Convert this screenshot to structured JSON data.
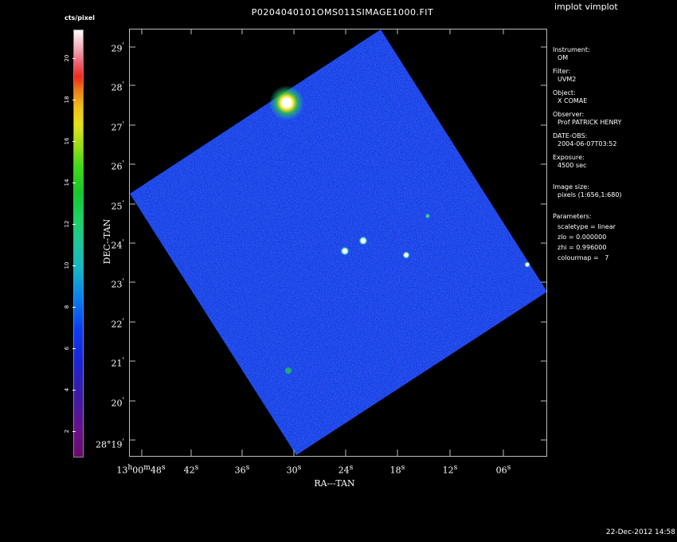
{
  "header": {
    "title": "P0204040101OMS011SIMAGE1000.FIT",
    "app_title": "implot vimplot"
  },
  "colorbar": {
    "unit": "cts/pixel",
    "ticks": [
      "2",
      "4",
      "6",
      "8",
      "10",
      "12",
      "14",
      "16",
      "18",
      "20"
    ],
    "range": [
      0.8,
      21.4
    ]
  },
  "axes": {
    "x_title": "RA---TAN",
    "y_title": "DEC--TAN",
    "x_first_label_main": "13",
    "x_first_label_h": "h",
    "x_first_label_mid": "00",
    "x_first_label_m": "m",
    "x_first_label_sec": "48",
    "x_first_label_s": "s",
    "x_labels": [
      "42",
      "36",
      "30",
      "24",
      "18",
      "12",
      "06"
    ],
    "x_label_unit": "s",
    "y_first_label_main": "28°19",
    "y_first_label_prime": "'",
    "y_labels": [
      "20",
      "21",
      "22",
      "23",
      "24",
      "25",
      "26",
      "27",
      "28",
      "29"
    ],
    "y_label_unit": "'"
  },
  "info": {
    "instrument_label": "Instrument:",
    "instrument_value": "OM",
    "filter_label": "Filter:",
    "filter_value": "UVM2",
    "object_label": "Object:",
    "object_value": "X COMAE",
    "observer_label": "Observer:",
    "observer_value": "Prof PATRICK HENRY",
    "date_label": "DATE-OBS:",
    "date_value": "2004-06-07T03:52",
    "exposure_label": "Exposure:",
    "exposure_value": "4500 sec",
    "image_size_label": "Image size:",
    "image_size_value": "pixels (1:656,1:680)",
    "parameters_label": "Parameters:",
    "param_scaletype": "scaletype = linear",
    "param_zlo": "zlo = 0.000000",
    "param_zhi": "zhi = 0.996000",
    "param_colourmap": "colourmap =   7"
  },
  "footer": {
    "timestamp": "22-Dec-2012 14:58"
  },
  "colors": {
    "background": "#000000",
    "image_base": "#1a2ee0",
    "frame": "#bbbbbb"
  }
}
